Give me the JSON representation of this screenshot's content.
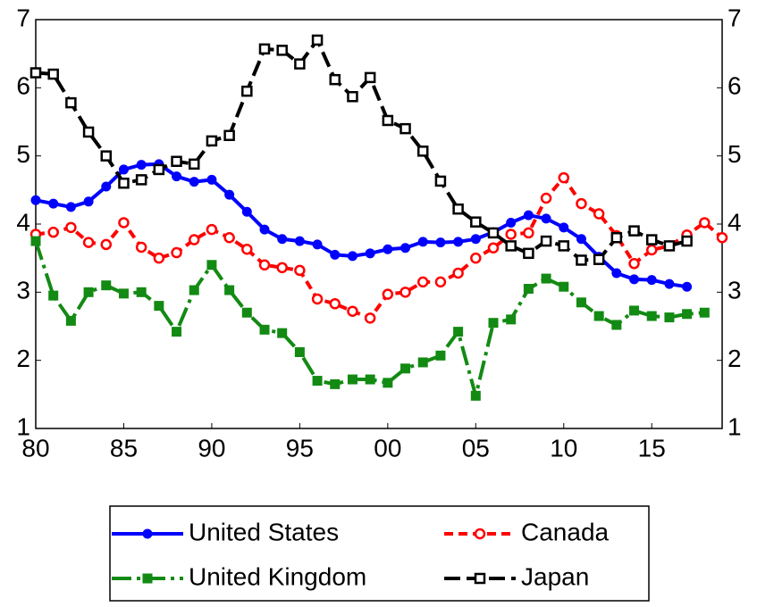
{
  "chart_data": {
    "type": "line",
    "x": [
      1980,
      1981,
      1982,
      1983,
      1984,
      1985,
      1986,
      1987,
      1988,
      1989,
      1990,
      1991,
      1992,
      1993,
      1994,
      1995,
      1996,
      1997,
      1998,
      1999,
      2000,
      2001,
      2002,
      2003,
      2004,
      2005,
      2006,
      2007,
      2008,
      2009,
      2010,
      2011,
      2012,
      2013,
      2014,
      2015,
      2016,
      2017,
      2018,
      2019
    ],
    "xlim": [
      1980,
      2019
    ],
    "xticks": [
      {
        "value": 1980,
        "label": "80"
      },
      {
        "value": 1985,
        "label": "85"
      },
      {
        "value": 1990,
        "label": "90"
      },
      {
        "value": 1995,
        "label": "95"
      },
      {
        "value": 2000,
        "label": "00"
      },
      {
        "value": 2005,
        "label": "05"
      },
      {
        "value": 2010,
        "label": "10"
      },
      {
        "value": 2015,
        "label": "15"
      }
    ],
    "ylim": [
      1,
      7
    ],
    "yticks": [
      1,
      2,
      3,
      4,
      5,
      6,
      7
    ],
    "y2lim": [
      1,
      7
    ],
    "y2ticks": [
      1,
      2,
      3,
      4,
      5,
      6,
      7
    ],
    "legend": "bottom",
    "series": [
      {
        "name": "United States",
        "color": "#0000ff",
        "dash": "solid",
        "marker": "filled-circle",
        "values": [
          4.35,
          4.3,
          4.25,
          4.33,
          4.55,
          4.8,
          4.87,
          4.88,
          4.7,
          4.62,
          4.65,
          4.43,
          4.18,
          3.92,
          3.78,
          3.75,
          3.7,
          3.55,
          3.53,
          3.57,
          3.63,
          3.65,
          3.74,
          3.73,
          3.74,
          3.78,
          3.88,
          4.02,
          4.13,
          4.08,
          3.95,
          3.78,
          3.52,
          3.28,
          3.19,
          3.18,
          3.12,
          3.08,
          null,
          null
        ]
      },
      {
        "name": "Canada",
        "color": "#ff0000",
        "dash": "short",
        "marker": "open-circle",
        "values": [
          3.85,
          3.88,
          3.95,
          3.73,
          3.7,
          4.02,
          3.66,
          3.5,
          3.58,
          3.77,
          3.92,
          3.8,
          3.63,
          3.4,
          3.36,
          3.32,
          2.9,
          2.83,
          2.72,
          2.62,
          2.97,
          3.0,
          3.15,
          3.15,
          3.28,
          3.5,
          3.65,
          3.85,
          3.87,
          4.38,
          4.68,
          4.3,
          4.15,
          3.83,
          3.42,
          3.62,
          3.68,
          3.84,
          4.02,
          3.8
        ]
      },
      {
        "name": "United Kingdom",
        "color": "#138a13",
        "dash": "dash-dot",
        "marker": "filled-square",
        "values": [
          3.75,
          2.95,
          2.58,
          3.0,
          3.1,
          2.98,
          3.0,
          2.8,
          2.42,
          3.03,
          3.4,
          3.03,
          2.7,
          2.45,
          2.4,
          2.12,
          1.7,
          1.65,
          1.72,
          1.72,
          1.67,
          1.88,
          1.97,
          2.07,
          2.42,
          1.48,
          2.55,
          2.6,
          3.05,
          3.2,
          3.08,
          2.85,
          2.65,
          2.52,
          2.73,
          2.65,
          2.63,
          2.68,
          2.7,
          null
        ]
      },
      {
        "name": "Japan",
        "color": "#000000",
        "dash": "long",
        "marker": "open-square",
        "values": [
          6.22,
          6.2,
          5.78,
          5.35,
          5.0,
          4.6,
          4.65,
          4.8,
          4.92,
          4.88,
          5.22,
          5.3,
          5.95,
          6.57,
          6.55,
          6.35,
          6.7,
          6.12,
          5.87,
          6.15,
          5.52,
          5.4,
          5.07,
          4.63,
          4.22,
          4.03,
          3.87,
          3.68,
          3.57,
          3.75,
          3.68,
          3.47,
          3.48,
          3.8,
          3.9,
          3.77,
          3.68,
          3.75,
          null,
          null
        ]
      }
    ]
  }
}
